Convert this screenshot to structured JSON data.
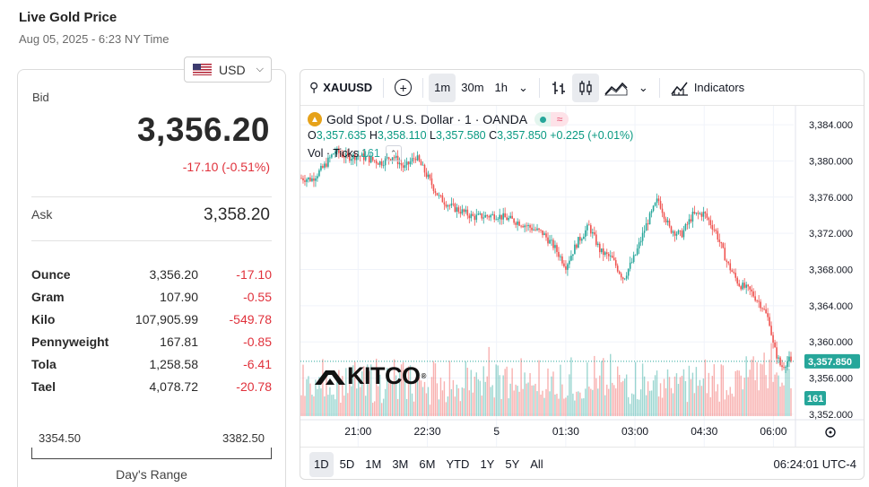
{
  "header": {
    "title": "Live Gold Price",
    "date": "Aug 05, 2025 - 6:23 NY Time"
  },
  "currency": {
    "selected": "USD",
    "flag_icon": "us-flag-icon"
  },
  "bid": {
    "label": "Bid",
    "value": "3,356.20",
    "change": "-17.10 (-0.51%)"
  },
  "ask": {
    "label": "Ask",
    "value": "3,358.20"
  },
  "units": [
    {
      "name": "Ounce",
      "price": "3,356.20",
      "change": "-17.10"
    },
    {
      "name": "Gram",
      "price": "107.90",
      "change": "-0.55"
    },
    {
      "name": "Kilo",
      "price": "107,905.99",
      "change": "-549.78"
    },
    {
      "name": "Pennyweight",
      "price": "167.81",
      "change": "-0.85"
    },
    {
      "name": "Tola",
      "price": "1,258.58",
      "change": "-6.41"
    },
    {
      "name": "Tael",
      "price": "4,078.72",
      "change": "-20.78"
    }
  ],
  "days_range": {
    "low": "3354.50",
    "high": "3382.50",
    "label": "Day's Range"
  },
  "toolbar": {
    "symbol": "XAUUSD",
    "intervals": [
      "1m",
      "30m",
      "1h"
    ],
    "active_interval": "1m",
    "indicators_label": "Indicators"
  },
  "legend": {
    "title": "Gold Spot / U.S. Dollar · 1 · OANDA",
    "open_label": "O",
    "open": "3,357.635",
    "high_label": "H",
    "high": "3,358.110",
    "low_label": "L",
    "low": "3,357.580",
    "close_label": "C",
    "close": "3,357.850",
    "change": "+0.225 (+0.01%)",
    "vol_label": "Vol · Ticks",
    "vol_value": "161"
  },
  "logo": "KITCO",
  "ranges": [
    "1D",
    "5D",
    "1M",
    "3M",
    "6M",
    "YTD",
    "1Y",
    "5Y",
    "All"
  ],
  "active_range": "1D",
  "clock": "06:24:01 UTC-4",
  "colors": {
    "up": "#26a69a",
    "down": "#ef5350",
    "negative_text": "#e0313b"
  },
  "chart_data": {
    "type": "candlestick",
    "symbol": "XAUUSD",
    "interval": "1m",
    "x_tick_labels": [
      "21:00",
      "22:30",
      "5",
      "01:30",
      "03:00",
      "04:30",
      "06:00"
    ],
    "y_ticks": [
      3352,
      3356,
      3360,
      3364,
      3368,
      3372,
      3376,
      3380,
      3384
    ],
    "y_tick_labels": [
      "3,352.000",
      "3,356.000",
      "3,360.000",
      "3,364.000",
      "3,368.000",
      "3,372.000",
      "3,376.000",
      "3,380.000",
      "3,384.000"
    ],
    "ylim": [
      3350.9,
      3385.3
    ],
    "last_price": 3357.85,
    "last_price_label": "3,357.850",
    "last_volume": 161,
    "price_path": [
      {
        "t": "19:45",
        "p": 3378.1
      },
      {
        "t": "20:00",
        "p": 3378.0
      },
      {
        "t": "20:15",
        "p": 3379.3
      },
      {
        "t": "20:30",
        "p": 3381.1
      },
      {
        "t": "20:45",
        "p": 3380.4
      },
      {
        "t": "21:00",
        "p": 3380.6
      },
      {
        "t": "21:30",
        "p": 3379.8
      },
      {
        "t": "21:45",
        "p": 3380.6
      },
      {
        "t": "22:00",
        "p": 3379.2
      },
      {
        "t": "22:15",
        "p": 3380.5
      },
      {
        "t": "22:30",
        "p": 3378.3
      },
      {
        "t": "22:45",
        "p": 3376.0
      },
      {
        "t": "23:00",
        "p": 3375.0
      },
      {
        "t": "23:30",
        "p": 3373.8
      },
      {
        "t": "00:00",
        "p": 3374.0
      },
      {
        "t": "00:30",
        "p": 3373.2
      },
      {
        "t": "01:00",
        "p": 3372.0
      },
      {
        "t": "01:15",
        "p": 3370.5
      },
      {
        "t": "01:30",
        "p": 3368.4
      },
      {
        "t": "01:45",
        "p": 3371.0
      },
      {
        "t": "02:00",
        "p": 3372.8
      },
      {
        "t": "02:15",
        "p": 3370.0
      },
      {
        "t": "02:30",
        "p": 3369.2
      },
      {
        "t": "02:45",
        "p": 3367.0
      },
      {
        "t": "03:00",
        "p": 3369.5
      },
      {
        "t": "03:15",
        "p": 3373.0
      },
      {
        "t": "03:30",
        "p": 3375.8
      },
      {
        "t": "03:45",
        "p": 3372.5
      },
      {
        "t": "04:00",
        "p": 3371.8
      },
      {
        "t": "04:15",
        "p": 3374.0
      },
      {
        "t": "04:30",
        "p": 3374.2
      },
      {
        "t": "04:45",
        "p": 3372.2
      },
      {
        "t": "05:00",
        "p": 3368.7
      },
      {
        "t": "05:15",
        "p": 3366.4
      },
      {
        "t": "05:30",
        "p": 3365.6
      },
      {
        "t": "05:45",
        "p": 3364.0
      },
      {
        "t": "05:55",
        "p": 3362.2
      },
      {
        "t": "06:00",
        "p": 3359.5
      },
      {
        "t": "06:10",
        "p": 3357.2
      },
      {
        "t": "06:20",
        "p": 3358.0
      },
      {
        "t": "06:24",
        "p": 3357.85
      }
    ]
  }
}
